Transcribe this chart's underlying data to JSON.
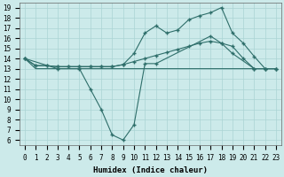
{
  "xlabel": "Humidex (Indice chaleur)",
  "background_color": "#cceaea",
  "line_color": "#2e6e6a",
  "grid_color": "#aad4d4",
  "xlim": [
    -0.5,
    23.5
  ],
  "ylim": [
    5.5,
    19.5
  ],
  "xticks": [
    0,
    1,
    2,
    3,
    4,
    5,
    6,
    7,
    8,
    9,
    10,
    11,
    12,
    13,
    14,
    15,
    16,
    17,
    18,
    19,
    20,
    21,
    22,
    23
  ],
  "yticks": [
    6,
    7,
    8,
    9,
    10,
    11,
    12,
    13,
    14,
    15,
    16,
    17,
    18,
    19
  ],
  "line1_x": [
    0,
    1,
    2,
    3,
    4,
    5,
    6,
    7,
    8,
    9,
    10,
    11,
    12,
    13,
    14,
    15,
    16,
    17,
    18,
    19,
    20,
    21,
    22,
    23
  ],
  "line1_y": [
    14,
    13,
    13,
    13,
    13,
    13,
    13,
    13,
    13,
    13,
    13,
    13,
    13,
    13,
    13,
    13,
    13,
    13,
    13,
    13,
    13,
    13,
    13,
    13
  ],
  "line2_x": [
    0,
    1,
    2,
    3,
    4,
    5,
    6,
    7,
    8,
    9,
    10,
    11,
    12,
    13,
    14,
    15,
    16,
    17,
    18,
    19,
    20,
    21,
    22,
    23
  ],
  "line2_y": [
    14,
    13.3,
    13.3,
    13.2,
    13.2,
    13.2,
    13.2,
    13.2,
    13.2,
    13.4,
    13.7,
    14.0,
    14.3,
    14.6,
    14.9,
    15.2,
    15.5,
    15.7,
    15.5,
    15.2,
    14.0,
    13.0,
    13.0,
    13.0
  ],
  "line3_x": [
    0,
    1,
    2,
    3,
    4,
    5,
    6,
    7,
    8,
    9,
    10,
    11,
    12,
    13,
    14,
    15,
    16,
    17,
    18,
    19,
    20,
    21,
    22,
    23
  ],
  "line3_y": [
    14,
    13.3,
    13.3,
    13.2,
    13.2,
    13.2,
    13.2,
    13.2,
    13.2,
    13.4,
    14.5,
    16.5,
    17.2,
    16.5,
    16.8,
    17.8,
    18.2,
    18.5,
    19.0,
    16.5,
    15.5,
    14.2,
    13.0,
    13.0
  ],
  "line4_x": [
    0,
    3,
    5,
    6,
    7,
    8,
    9,
    10,
    11,
    12,
    17,
    18,
    19,
    21,
    22,
    23
  ],
  "line4_y": [
    14,
    13,
    13,
    11,
    9,
    6.5,
    6,
    7.5,
    13.5,
    13.5,
    16.2,
    15.5,
    14.5,
    13.0,
    13.0,
    13.0
  ],
  "markersize": 2.5
}
